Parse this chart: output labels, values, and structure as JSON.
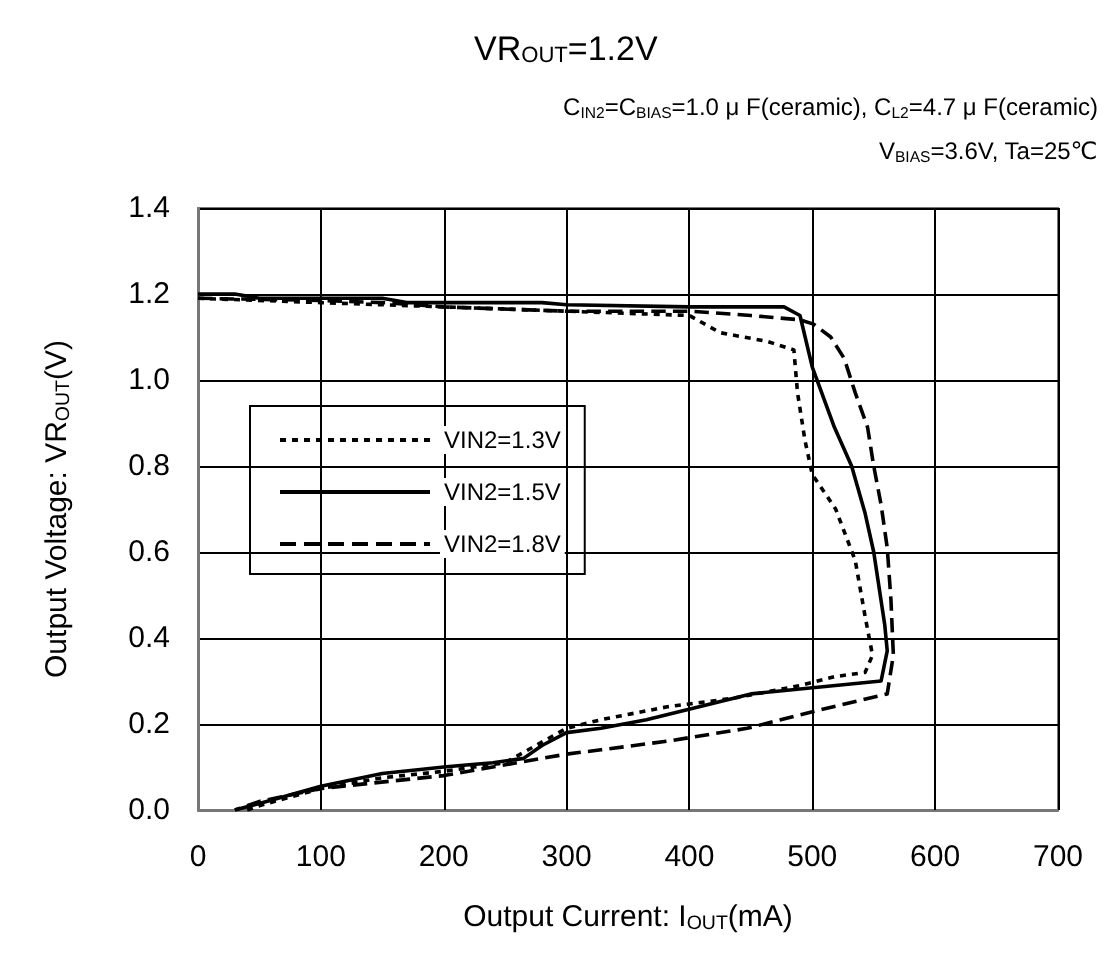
{
  "chart_data": {
    "type": "line",
    "title": "VR$_{OUT}$=1.2V",
    "subtitle": "C$_{IN2}$=C$_{BIAS}$=1.0 μ F(ceramic), C$_{L2}$=4.7 μ F(ceramic)\nV$_{BIAS}$=3.6V, Ta=25℃",
    "xlabel": "Output Current: I$_{OUT}$(mA)",
    "ylabel": "Output Voltage: VR$_{OUT}$(V)",
    "xlim": [
      0,
      700
    ],
    "xticks": [
      0,
      100,
      200,
      300,
      400,
      500,
      600,
      700
    ],
    "ylim": [
      0,
      1.4
    ],
    "yticks": [
      {
        "value": 0,
        "label": "0.0"
      },
      {
        "value": 0.2,
        "label": "0.2"
      },
      {
        "value": 0.4,
        "label": "0.4"
      },
      {
        "value": 0.6,
        "label": "0.6"
      },
      {
        "value": 0.8,
        "label": "0.8"
      },
      {
        "value": 1,
        "label": "1.0"
      },
      {
        "value": 1.2,
        "label": "1.2"
      },
      {
        "value": 1.4,
        "label": "1.4"
      }
    ],
    "grid": true,
    "legend": "left",
    "marker": "none",
    "series": [
      {
        "name": "VIN2=1.3V",
        "color": "#000000",
        "line_style": "dotted",
        "x": [
          0,
          100,
          200,
          300,
          400,
          425,
          463,
          485,
          488,
          494,
          500,
          512,
          519,
          527,
          535,
          543,
          549,
          543,
          518,
          491,
          436,
          382,
          328,
          300,
          250,
          200,
          150,
          100,
          50,
          40
        ],
        "values": [
          1.19,
          1.18,
          1.17,
          1.16,
          1.15,
          1.11,
          1.09,
          1.07,
          0.97,
          0.86,
          0.78,
          0.73,
          0.7,
          0.64,
          0.58,
          0.45,
          0.36,
          0.32,
          0.31,
          0.29,
          0.26,
          0.24,
          0.21,
          0.19,
          0.11,
          0.09,
          0.075,
          0.05,
          0.01,
          0
        ]
      },
      {
        "name": "VIN2=1.5V",
        "color": "#000000",
        "line_style": "solid",
        "x": [
          0,
          30,
          50,
          150,
          170,
          280,
          300,
          400,
          477,
          490,
          500,
          518,
          532,
          543,
          550,
          559,
          561,
          556,
          450,
          365,
          328,
          300,
          280,
          265,
          240,
          200,
          150,
          100,
          50,
          30
        ],
        "values": [
          1.2,
          1.2,
          1.19,
          1.19,
          1.18,
          1.18,
          1.175,
          1.17,
          1.17,
          1.15,
          1.03,
          0.89,
          0.8,
          0.69,
          0.6,
          0.43,
          0.37,
          0.3,
          0.27,
          0.21,
          0.19,
          0.18,
          0.15,
          0.12,
          0.11,
          0.1,
          0.085,
          0.055,
          0.015,
          0
        ]
      },
      {
        "name": "VIN2=1.8V",
        "color": "#000000",
        "line_style": "dashed",
        "x": [
          0,
          100,
          150,
          200,
          300,
          400,
          450,
          490,
          501,
          515,
          526,
          535,
          545,
          550,
          556,
          561,
          564,
          566,
          561,
          502,
          447,
          382,
          328,
          300,
          200,
          100,
          50,
          30
        ],
        "values": [
          1.19,
          1.185,
          1.18,
          1.17,
          1.16,
          1.16,
          1.15,
          1.14,
          1.13,
          1.1,
          1.05,
          0.97,
          0.89,
          0.8,
          0.71,
          0.61,
          0.49,
          0.36,
          0.27,
          0.23,
          0.19,
          0.16,
          0.14,
          0.13,
          0.08,
          0.05,
          0.02,
          0
        ]
      }
    ]
  }
}
